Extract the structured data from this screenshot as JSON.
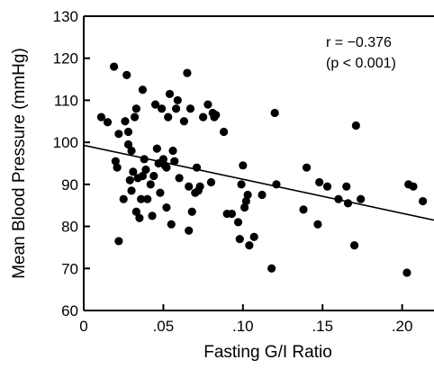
{
  "chart_data": {
    "type": "scatter",
    "xlabel": "Fasting G/I Ratio",
    "ylabel": "Mean Blood Pressure (mmHg)",
    "xlim": [
      0,
      0.22
    ],
    "ylim": [
      60,
      130
    ],
    "x_ticks": [
      0,
      0.05,
      0.1,
      0.15,
      0.2
    ],
    "x_tick_labels": [
      "0",
      ".05",
      ".10",
      ".15",
      ".20"
    ],
    "y_ticks": [
      60,
      70,
      80,
      90,
      100,
      110,
      120,
      130
    ],
    "y_tick_labels": [
      "60",
      "70",
      "80",
      "90",
      "100",
      "110",
      "120",
      "130"
    ],
    "grid": false,
    "annotations": [
      "r = −0.376",
      "(p < 0.001)"
    ],
    "regression_line": {
      "x": [
        0,
        0.22
      ],
      "y": [
        99.3,
        81.5
      ]
    },
    "points": [
      [
        0.011,
        106.0
      ],
      [
        0.015,
        104.8
      ],
      [
        0.019,
        118.0
      ],
      [
        0.02,
        95.5
      ],
      [
        0.021,
        94.0
      ],
      [
        0.022,
        102.0
      ],
      [
        0.022,
        76.5
      ],
      [
        0.025,
        86.5
      ],
      [
        0.026,
        105.0
      ],
      [
        0.027,
        116.0
      ],
      [
        0.028,
        102.5
      ],
      [
        0.028,
        99.5
      ],
      [
        0.029,
        91.0
      ],
      [
        0.03,
        88.5
      ],
      [
        0.03,
        98.0
      ],
      [
        0.031,
        93.0
      ],
      [
        0.032,
        106.0
      ],
      [
        0.033,
        108.0
      ],
      [
        0.033,
        83.5
      ],
      [
        0.034,
        91.5
      ],
      [
        0.035,
        82.0
      ],
      [
        0.036,
        86.5
      ],
      [
        0.037,
        92.0
      ],
      [
        0.037,
        112.5
      ],
      [
        0.038,
        96.0
      ],
      [
        0.039,
        93.5
      ],
      [
        0.04,
        86.5
      ],
      [
        0.042,
        90.0
      ],
      [
        0.043,
        82.5
      ],
      [
        0.044,
        92.0
      ],
      [
        0.045,
        109.0
      ],
      [
        0.046,
        98.5
      ],
      [
        0.047,
        95.0
      ],
      [
        0.048,
        88.0
      ],
      [
        0.049,
        108.0
      ],
      [
        0.05,
        96.0
      ],
      [
        0.051,
        94.5
      ],
      [
        0.052,
        94.0
      ],
      [
        0.052,
        84.5
      ],
      [
        0.053,
        106.0
      ],
      [
        0.054,
        111.5
      ],
      [
        0.055,
        80.5
      ],
      [
        0.056,
        98.0
      ],
      [
        0.057,
        95.5
      ],
      [
        0.058,
        108.0
      ],
      [
        0.059,
        110.0
      ],
      [
        0.06,
        91.5
      ],
      [
        0.063,
        105.0
      ],
      [
        0.065,
        116.5
      ],
      [
        0.066,
        89.5
      ],
      [
        0.066,
        79.0
      ],
      [
        0.067,
        108.0
      ],
      [
        0.068,
        83.5
      ],
      [
        0.07,
        88.0
      ],
      [
        0.071,
        94.0
      ],
      [
        0.072,
        88.5
      ],
      [
        0.073,
        89.5
      ],
      [
        0.075,
        106.0
      ],
      [
        0.078,
        109.0
      ],
      [
        0.08,
        90.5
      ],
      [
        0.081,
        107.0
      ],
      [
        0.082,
        106.0
      ],
      [
        0.083,
        106.5
      ],
      [
        0.088,
        102.5
      ],
      [
        0.09,
        83.0
      ],
      [
        0.093,
        83.0
      ],
      [
        0.097,
        81.0
      ],
      [
        0.098,
        77.0
      ],
      [
        0.099,
        90.0
      ],
      [
        0.1,
        94.5
      ],
      [
        0.101,
        84.5
      ],
      [
        0.102,
        86.0
      ],
      [
        0.103,
        87.5
      ],
      [
        0.104,
        75.5
      ],
      [
        0.107,
        77.5
      ],
      [
        0.112,
        87.5
      ],
      [
        0.118,
        70.0
      ],
      [
        0.12,
        107.0
      ],
      [
        0.121,
        90.0
      ],
      [
        0.138,
        84.0
      ],
      [
        0.14,
        94.0
      ],
      [
        0.147,
        80.5
      ],
      [
        0.148,
        90.5
      ],
      [
        0.153,
        89.5
      ],
      [
        0.16,
        86.5
      ],
      [
        0.165,
        89.5
      ],
      [
        0.166,
        85.5
      ],
      [
        0.17,
        75.5
      ],
      [
        0.171,
        104.0
      ],
      [
        0.174,
        86.5
      ],
      [
        0.203,
        69.0
      ],
      [
        0.204,
        90.0
      ],
      [
        0.207,
        89.5
      ],
      [
        0.213,
        86.0
      ]
    ]
  }
}
